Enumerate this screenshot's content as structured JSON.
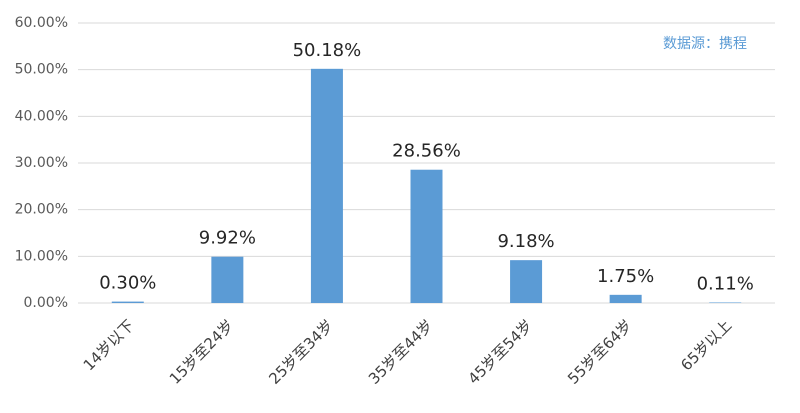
{
  "chart_data": {
    "type": "bar",
    "annotation": "数据源：携程",
    "categories": [
      "14岁以下",
      "15岁至24岁",
      "25岁至34岁",
      "35岁至44岁",
      "45岁至54岁",
      "55岁至64岁",
      "65岁以上"
    ],
    "values": [
      0.3,
      9.92,
      50.18,
      28.56,
      9.18,
      1.75,
      0.11
    ],
    "value_labels": [
      "0.30%",
      "9.92%",
      "50.18%",
      "28.56%",
      "9.18%",
      "1.75%",
      "0.11%"
    ],
    "color": "#5b9bd5",
    "ylim": [
      0,
      60
    ],
    "yticks": [
      {
        "value": 0,
        "label": "0.00%"
      },
      {
        "value": 10,
        "label": "10.00%"
      },
      {
        "value": 20,
        "label": "20.00%"
      },
      {
        "value": 30,
        "label": "30.00%"
      },
      {
        "value": 40,
        "label": "40.00%"
      },
      {
        "value": 50,
        "label": "50.00%"
      },
      {
        "value": 60,
        "label": "60.00%"
      }
    ],
    "grid": true
  }
}
